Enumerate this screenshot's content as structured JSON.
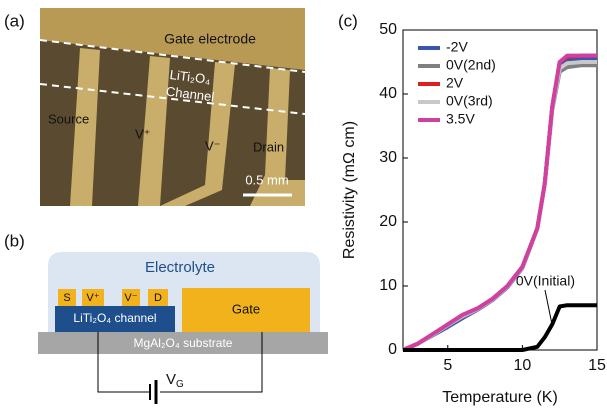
{
  "panel_a": {
    "label": "(a)",
    "gate": "Gate electrode",
    "channel_1": "LiTi₂O₄",
    "channel_2": "Channel",
    "source": "Source",
    "v_plus": "V⁺",
    "v_minus": "V⁻",
    "drain": "Drain",
    "scale": "0.5 mm"
  },
  "panel_b": {
    "label": "(b)",
    "electrolyte": "Electrolyte",
    "s": "S",
    "v_plus": "V⁺",
    "v_minus": "V⁻",
    "d": "D",
    "gate": "Gate",
    "channel": "LiTi₂O₄ channel",
    "substrate": "MgAl₂O₄ substrate",
    "vg_main": "V",
    "vg_sub": "G"
  },
  "chart_data": {
    "type": "line",
    "panel_label": "(c)",
    "x_label": "Temperature (K)",
    "y_label": "Resistivity (mΩ cm)",
    "x": [
      2,
      3,
      4,
      5,
      6,
      7,
      8,
      9,
      10,
      11,
      11.5,
      12,
      12.5,
      13,
      14,
      15
    ],
    "series": [
      {
        "name": "-2V",
        "color": "#3a55b0",
        "values": [
          0,
          1,
          2.3,
          3.6,
          5,
          6.3,
          7.8,
          9.8,
          12.8,
          19,
          26,
          38,
          44.5,
          45.3,
          45.5,
          45.5
        ]
      },
      {
        "name": "0V(2nd)",
        "color": "#808080",
        "values": [
          0,
          1,
          2.4,
          3.8,
          5.2,
          6.4,
          7.9,
          9.9,
          12.9,
          19,
          26,
          37.5,
          43.5,
          44.2,
          44.5,
          44.5
        ]
      },
      {
        "name": "2V",
        "color": "#e02020",
        "values": [
          0,
          1,
          2.5,
          4,
          5.5,
          6.5,
          8,
          10,
          13,
          19,
          26,
          38,
          45,
          45.8,
          46,
          46
        ]
      },
      {
        "name": "0V(3rd)",
        "color": "#c8c8c8",
        "values": [
          0,
          1,
          2.4,
          3.9,
          5.3,
          6.4,
          7.9,
          9.9,
          12.9,
          19,
          26,
          37.8,
          44,
          44.8,
          45,
          45
        ]
      },
      {
        "name": "3.5V",
        "color": "#d040a0",
        "values": [
          0,
          1,
          2.5,
          4,
          5.5,
          6.5,
          8,
          10,
          13,
          19,
          26,
          38,
          45,
          46,
          46,
          46
        ]
      }
    ],
    "annotation_series": {
      "name": "0V(Initial)",
      "color": "#000000",
      "values": [
        0,
        0,
        0,
        0,
        0,
        0,
        0,
        0,
        0,
        0.5,
        2,
        4,
        6.8,
        7,
        7,
        7
      ]
    },
    "xlim": [
      2,
      15
    ],
    "xticks": [
      5,
      10,
      15
    ],
    "ylim": [
      0,
      50
    ],
    "yticks": [
      0,
      10,
      20,
      30,
      40,
      50
    ]
  }
}
